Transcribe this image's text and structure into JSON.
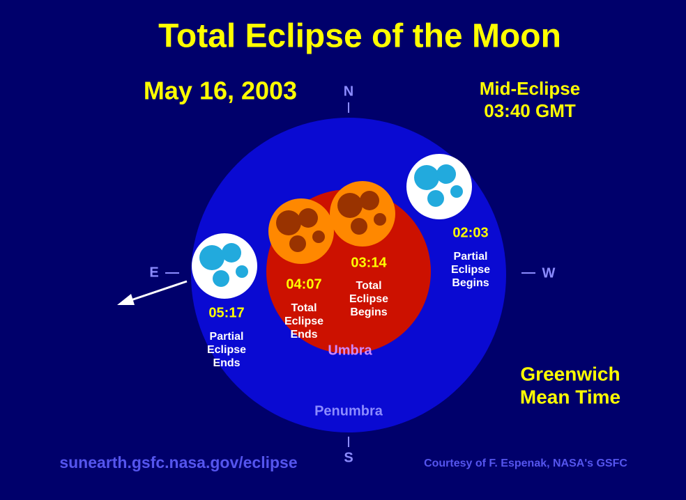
{
  "title": "Total Eclipse of the Moon",
  "date": "May 16, 2003",
  "mid_eclipse": {
    "label": "Mid-Eclipse",
    "time": "03:40 GMT"
  },
  "compass": {
    "n": "N",
    "s": "S",
    "e": "E",
    "w": "W"
  },
  "events": [
    {
      "time": "02:03",
      "label": [
        "Partial",
        "Eclipse",
        "Begins"
      ]
    },
    {
      "time": "03:14",
      "label": [
        "Total",
        "Eclipse",
        "Begins"
      ]
    },
    {
      "time": "04:07",
      "label": [
        "Total",
        "Eclipse",
        "Ends"
      ]
    },
    {
      "time": "05:17",
      "label": [
        "Partial",
        "Eclipse",
        "Ends"
      ]
    }
  ],
  "regions": {
    "umbra": "Umbra",
    "penumbra": "Penumbra"
  },
  "timezone": [
    "Greenwich",
    "Mean Time"
  ],
  "url": "sunearth.gsfc.nasa.gov/eclipse",
  "credit": "Courtesy of F. Espenak, NASA's GSFC"
}
